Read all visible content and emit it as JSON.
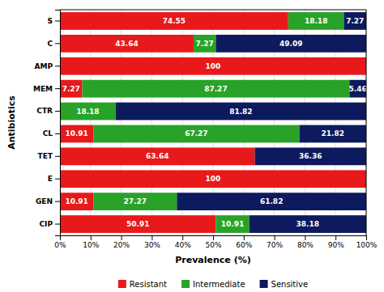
{
  "chart_data": {
    "type": "bar",
    "orientation": "horizontal",
    "stacked": true,
    "data_labels": true,
    "grid": true,
    "legend": "bottom",
    "xlabel": "Prevalence (%)",
    "ylabel": "Antibiotics",
    "categories": [
      "S",
      "C",
      "AMP",
      "MEM",
      "CTR",
      "CL",
      "TET",
      "E",
      "GEN",
      "CIP"
    ],
    "series": [
      {
        "name": "Resistant",
        "color": "#e8191a",
        "values": [
          74.55,
          43.64,
          100,
          7.27,
          0,
          10.91,
          63.64,
          100,
          10.91,
          50.91
        ]
      },
      {
        "name": "Intermediate",
        "color": "#28a328",
        "values": [
          18.18,
          7.27,
          0,
          87.27,
          18.18,
          67.27,
          0,
          0,
          27.27,
          10.91
        ]
      },
      {
        "name": "Sensitive",
        "color": "#0d1a5e",
        "values": [
          7.27,
          49.09,
          0,
          5.46,
          81.82,
          21.82,
          36.36,
          0,
          61.82,
          38.18
        ]
      }
    ],
    "xlim": [
      0,
      100
    ],
    "xticks": [
      {
        "value": 0,
        "label": "0%"
      },
      {
        "value": 10,
        "label": "10%"
      },
      {
        "value": 20,
        "label": "20%"
      },
      {
        "value": 30,
        "label": "30%"
      },
      {
        "value": 40,
        "label": "40%"
      },
      {
        "value": 50,
        "label": "50%"
      },
      {
        "value": 60,
        "label": "60%"
      },
      {
        "value": 70,
        "label": "70%"
      },
      {
        "value": 80,
        "label": "80%"
      },
      {
        "value": 90,
        "label": "90%"
      },
      {
        "value": 100,
        "label": "100%"
      }
    ]
  }
}
